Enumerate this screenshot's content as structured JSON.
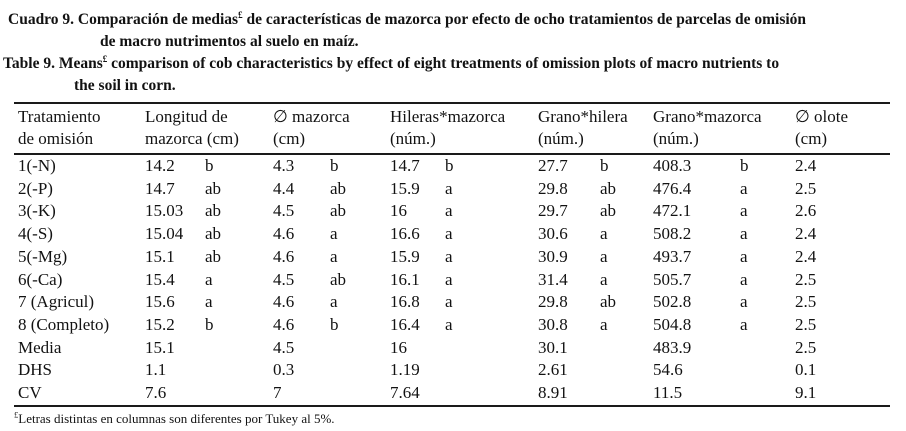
{
  "captions": [
    {
      "name": "caption-es",
      "lines": [
        [
          {
            "t": "Cuadro 9. Comparación de medias",
            "sup": false
          },
          {
            "t": "£",
            "sup": true
          },
          {
            "t": " de características de mazorca por efecto de ocho tratamientos de parcelas de omisión",
            "sup": false
          }
        ],
        [
          {
            "t": "de macro nutrimentos al suelo en maíz.",
            "sup": false
          }
        ]
      ]
    },
    {
      "name": "caption-en",
      "lines": [
        [
          {
            "t": "Table 9. Means",
            "sup": false
          },
          {
            "t": "£",
            "sup": true
          },
          {
            "t": " comparison of cob characteristics by effect of eight treatments of omission plots of macro nutrients to",
            "sup": false
          }
        ],
        [
          {
            "t": "the soil in corn.",
            "sup": false
          }
        ]
      ]
    }
  ],
  "table": {
    "columns": [
      {
        "line1": "Tratamiento",
        "line2": "de omisión"
      },
      {
        "line1": "Longitud de",
        "line2": "mazorca (cm)"
      },
      {
        "line1": "∅ mazorca",
        "line2": "(cm)"
      },
      {
        "line1": "Hileras*mazorca",
        "line2": "(núm.)"
      },
      {
        "line1": "Grano*hilera",
        "line2": "(núm.)"
      },
      {
        "line1": "Grano*mazorca",
        "line2": "(núm.)"
      },
      {
        "line1": "∅ olote",
        "line2": "(cm)"
      }
    ],
    "rows": [
      {
        "label": "1(-N)",
        "cells": [
          {
            "v": "14.2",
            "l": "b"
          },
          {
            "v": "4.3",
            "l": "b"
          },
          {
            "v": "14.7",
            "l": "b"
          },
          {
            "v": "27.7",
            "l": "b"
          },
          {
            "v": "408.3",
            "l": "b"
          },
          {
            "v": "2.4",
            "l": ""
          }
        ]
      },
      {
        "label": "2(-P)",
        "cells": [
          {
            "v": "14.7",
            "l": "ab"
          },
          {
            "v": "4.4",
            "l": "ab"
          },
          {
            "v": "15.9",
            "l": "a"
          },
          {
            "v": "29.8",
            "l": "ab"
          },
          {
            "v": "476.4",
            "l": "a"
          },
          {
            "v": "2.5",
            "l": ""
          }
        ]
      },
      {
        "label": "3(-K)",
        "cells": [
          {
            "v": "15.03",
            "l": "ab"
          },
          {
            "v": "4.5",
            "l": "ab"
          },
          {
            "v": "16",
            "l": "a"
          },
          {
            "v": "29.7",
            "l": "ab"
          },
          {
            "v": "472.1",
            "l": "a"
          },
          {
            "v": "2.6",
            "l": ""
          }
        ]
      },
      {
        "label": "4(-S)",
        "cells": [
          {
            "v": "15.04",
            "l": "ab"
          },
          {
            "v": "4.6",
            "l": "a"
          },
          {
            "v": "16.6",
            "l": "a"
          },
          {
            "v": "30.6",
            "l": "a"
          },
          {
            "v": "508.2",
            "l": "a"
          },
          {
            "v": "2.4",
            "l": ""
          }
        ]
      },
      {
        "label": "5(-Mg)",
        "cells": [
          {
            "v": "15.1",
            "l": "ab"
          },
          {
            "v": "4.6",
            "l": "a"
          },
          {
            "v": "15.9",
            "l": "a"
          },
          {
            "v": "30.9",
            "l": "a"
          },
          {
            "v": "493.7",
            "l": "a"
          },
          {
            "v": "2.4",
            "l": ""
          }
        ]
      },
      {
        "label": "6(-Ca)",
        "cells": [
          {
            "v": "15.4",
            "l": "a"
          },
          {
            "v": "4.5",
            "l": "ab"
          },
          {
            "v": "16.1",
            "l": "a"
          },
          {
            "v": "31.4",
            "l": "a"
          },
          {
            "v": "505.7",
            "l": "a"
          },
          {
            "v": "2.5",
            "l": ""
          }
        ]
      },
      {
        "label": "7 (Agricul)",
        "cells": [
          {
            "v": "15.6",
            "l": "a"
          },
          {
            "v": "4.6",
            "l": "a"
          },
          {
            "v": "16.8",
            "l": "a"
          },
          {
            "v": "29.8",
            "l": "ab"
          },
          {
            "v": "502.8",
            "l": "a"
          },
          {
            "v": "2.5",
            "l": ""
          }
        ]
      },
      {
        "label": "8 (Completo)",
        "cells": [
          {
            "v": "15.2",
            "l": "b"
          },
          {
            "v": "4.6",
            "l": "b"
          },
          {
            "v": "16.4",
            "l": "a"
          },
          {
            "v": "30.8",
            "l": "a"
          },
          {
            "v": "504.8",
            "l": "a"
          },
          {
            "v": "2.5",
            "l": ""
          }
        ]
      },
      {
        "label": "Media",
        "cells": [
          {
            "v": "15.1",
            "l": ""
          },
          {
            "v": "4.5",
            "l": ""
          },
          {
            "v": "16",
            "l": ""
          },
          {
            "v": "30.1",
            "l": ""
          },
          {
            "v": "483.9",
            "l": ""
          },
          {
            "v": "2.5",
            "l": ""
          }
        ]
      },
      {
        "label": "DHS",
        "cells": [
          {
            "v": "1.1",
            "l": ""
          },
          {
            "v": "0.3",
            "l": ""
          },
          {
            "v": "1.19",
            "l": ""
          },
          {
            "v": "2.61",
            "l": ""
          },
          {
            "v": "54.6",
            "l": ""
          },
          {
            "v": "0.1",
            "l": ""
          }
        ]
      },
      {
        "label": "CV",
        "cells": [
          {
            "v": "7.6",
            "l": ""
          },
          {
            "v": "7",
            "l": ""
          },
          {
            "v": "7.64",
            "l": ""
          },
          {
            "v": "8.91",
            "l": ""
          },
          {
            "v": "11.5",
            "l": ""
          },
          {
            "v": "9.1",
            "l": ""
          }
        ]
      }
    ]
  },
  "footnote": {
    "parts": [
      {
        "t": "£",
        "sup": true
      },
      {
        "t": "Letras distintas en columnas son diferentes por Tukey al 5%.",
        "sup": false
      }
    ]
  },
  "colors": {
    "text": "#121212",
    "background": "#ffffff",
    "rule": "#1a1a1a"
  }
}
